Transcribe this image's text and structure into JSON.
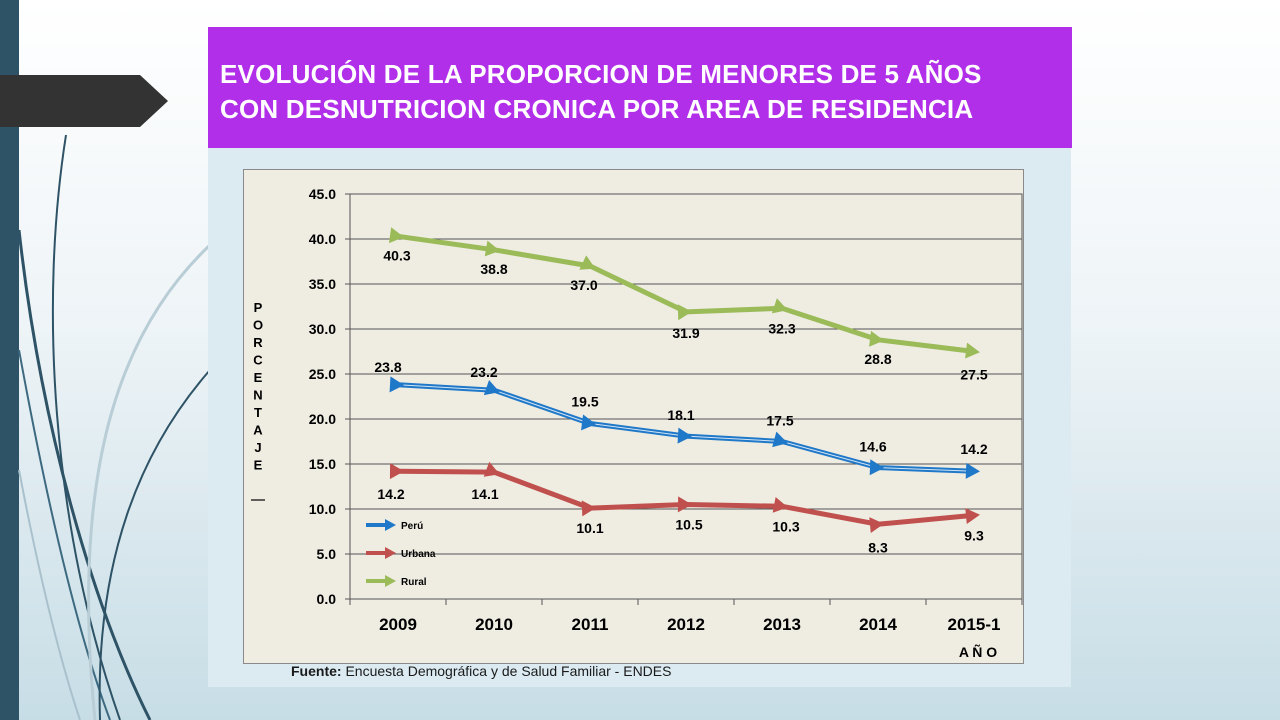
{
  "slide": {
    "title_lines": [
      "EVOLUCIÓN DE LA PROPORCION DE MENORES DE 5 AÑOS",
      "CON DESNUTRICION CRONICA POR AREA DE RESIDENCIA"
    ],
    "source_label": "Fuente:",
    "source_text": "Encuesta Demográfica y de Salud Familiar - ENDES"
  },
  "chart_data": {
    "type": "line",
    "title": "EVOLUCIÓN DE LA PROPORCION DE MENORES DE 5 AÑOS CON DESNUTRICION CRONICA POR AREA DE RESIDENCIA",
    "xlabel": "A Ñ O",
    "ylabel": "PORCENTAJE",
    "categories": [
      "2009",
      "2010",
      "2011",
      "2012",
      "2013",
      "2014",
      "2015-1"
    ],
    "ylim": [
      0,
      45
    ],
    "yticks": [
      "0.0",
      "5.0",
      "10.0",
      "15.0",
      "20.0",
      "25.0",
      "30.0",
      "35.0",
      "40.0",
      "45.0"
    ],
    "grid": true,
    "legend_position": "bottom-left",
    "series": [
      {
        "name": "Perú",
        "color": "#1f78c8",
        "values": [
          23.8,
          23.2,
          19.5,
          18.1,
          17.5,
          14.6,
          14.2
        ],
        "labels": [
          "23.8",
          "23.2",
          "19.5",
          "18.1",
          "17.5",
          "14.6",
          "14.2"
        ]
      },
      {
        "name": "Urbana",
        "color": "#c0504d",
        "values": [
          14.2,
          14.1,
          10.1,
          10.5,
          10.3,
          8.3,
          9.3
        ],
        "labels": [
          "14.2",
          "14.1",
          "10.1",
          "10.5",
          "10.3",
          "8.3",
          "9.3"
        ]
      },
      {
        "name": "Rural",
        "color": "#9bbb59",
        "values": [
          40.3,
          38.8,
          37.0,
          31.9,
          32.3,
          28.8,
          27.5
        ],
        "labels": [
          "40.3",
          "38.8",
          "37.0",
          "31.9",
          "32.3",
          "28.8",
          "27.5"
        ]
      }
    ]
  }
}
